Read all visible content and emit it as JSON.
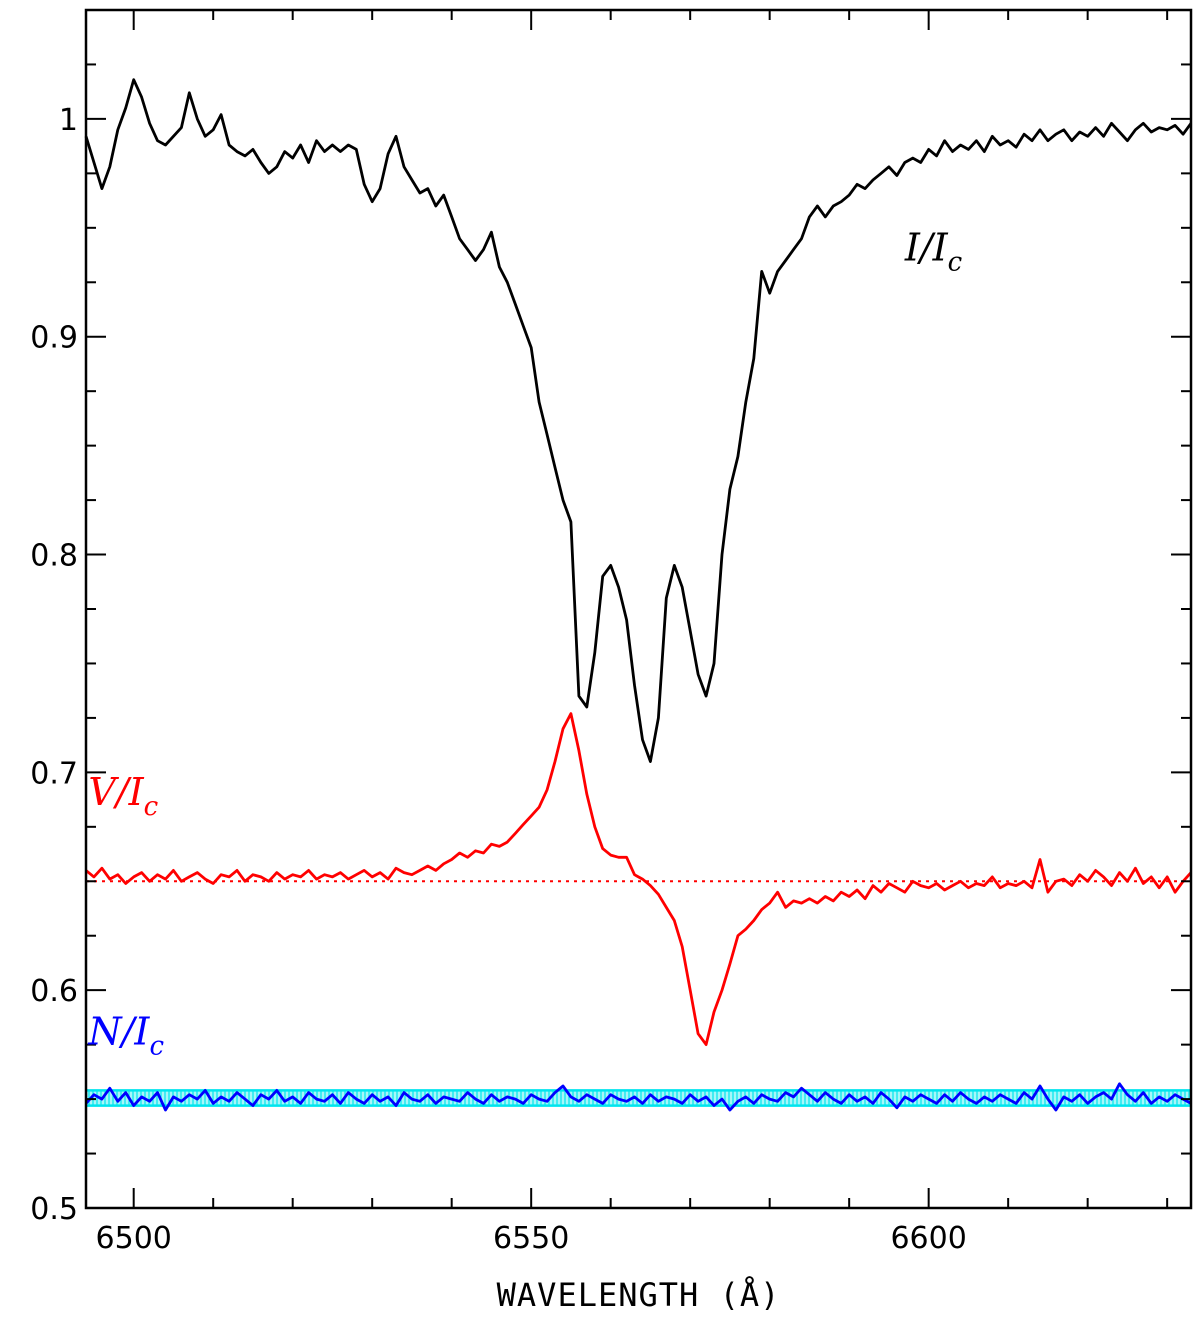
{
  "chart_data": {
    "type": "line",
    "title": "",
    "xlabel": "WAVELENGTH (Å)",
    "ylabel": "",
    "xlim": [
      6494,
      6633
    ],
    "ylim": [
      0.5,
      1.05
    ],
    "x_ticks": [
      6500,
      6550,
      6600
    ],
    "y_ticks": [
      0.5,
      0.6,
      0.7,
      0.8,
      0.9,
      1
    ],
    "x_tick_labels": [
      "6500",
      "6550",
      "6600"
    ],
    "y_tick_labels": [
      "0.5",
      "0.6",
      "0.7",
      "0.8",
      "0.9",
      "1"
    ],
    "x_minor_step": 10,
    "y_minor_step": 0.025,
    "grid": false,
    "annotations": [
      {
        "id": "I",
        "main": "I/I",
        "sub": "c",
        "x": 6597,
        "y": 0.935,
        "color": "#000000"
      },
      {
        "id": "V",
        "main": "V/I",
        "sub": "c",
        "x": 6494.3,
        "y": 0.685,
        "color": "#ff0000"
      },
      {
        "id": "N",
        "main": "N/I",
        "sub": "c",
        "x": 6494.3,
        "y": 0.575,
        "color": "#0000ff"
      }
    ],
    "series": [
      {
        "id": "I",
        "color": "#000000",
        "x": [
          6494,
          6496,
          6497,
          6498,
          6499,
          6500,
          6501,
          6502,
          6503,
          6504,
          6506,
          6507,
          6508,
          6509,
          6510,
          6511,
          6512,
          6513,
          6514,
          6515,
          6516,
          6517,
          6518,
          6519,
          6520,
          6521,
          6522,
          6523,
          6524,
          6525,
          6526,
          6527,
          6528,
          6529,
          6530,
          6531,
          6532,
          6533,
          6534,
          6535,
          6536,
          6537,
          6538,
          6539,
          6540,
          6541,
          6542,
          6543,
          6544,
          6545,
          6546,
          6547,
          6548,
          6549,
          6550,
          6551,
          6552,
          6553,
          6554,
          6555,
          6556,
          6557,
          6558,
          6559,
          6560,
          6561,
          6562,
          6563,
          6564,
          6565,
          6566,
          6567,
          6568,
          6569,
          6570,
          6571,
          6572,
          6573,
          6574,
          6575,
          6576,
          6577,
          6578,
          6579,
          6580,
          6581,
          6582,
          6583,
          6584,
          6585,
          6586,
          6587,
          6588,
          6589,
          6590,
          6591,
          6592,
          6593,
          6594,
          6595,
          6596,
          6597,
          6598,
          6599,
          6600,
          6601,
          6602,
          6603,
          6604,
          6605,
          6606,
          6607,
          6608,
          6609,
          6610,
          6611,
          6612,
          6613,
          6614,
          6615,
          6616,
          6617,
          6618,
          6619,
          6620,
          6621,
          6622,
          6623,
          6624,
          6625,
          6626,
          6627,
          6628,
          6629,
          6630,
          6631,
          6632,
          6633
        ],
        "y": [
          0.992,
          0.968,
          0.978,
          0.995,
          1.005,
          1.018,
          1.01,
          0.998,
          0.99,
          0.988,
          0.996,
          1.012,
          1.0,
          0.992,
          0.995,
          1.002,
          0.988,
          0.985,
          0.983,
          0.986,
          0.98,
          0.975,
          0.978,
          0.985,
          0.982,
          0.988,
          0.98,
          0.99,
          0.985,
          0.988,
          0.985,
          0.988,
          0.986,
          0.97,
          0.962,
          0.968,
          0.984,
          0.992,
          0.978,
          0.972,
          0.966,
          0.968,
          0.96,
          0.965,
          0.955,
          0.945,
          0.94,
          0.935,
          0.94,
          0.948,
          0.932,
          0.925,
          0.915,
          0.905,
          0.895,
          0.87,
          0.855,
          0.84,
          0.825,
          0.815,
          0.735,
          0.73,
          0.755,
          0.79,
          0.795,
          0.785,
          0.77,
          0.74,
          0.715,
          0.705,
          0.725,
          0.78,
          0.795,
          0.785,
          0.765,
          0.745,
          0.735,
          0.75,
          0.8,
          0.83,
          0.845,
          0.87,
          0.89,
          0.93,
          0.92,
          0.93,
          0.935,
          0.94,
          0.945,
          0.955,
          0.96,
          0.955,
          0.96,
          0.962,
          0.965,
          0.97,
          0.968,
          0.972,
          0.975,
          0.978,
          0.974,
          0.98,
          0.982,
          0.98,
          0.986,
          0.983,
          0.99,
          0.985,
          0.988,
          0.986,
          0.99,
          0.985,
          0.992,
          0.988,
          0.99,
          0.987,
          0.993,
          0.99,
          0.995,
          0.99,
          0.993,
          0.995,
          0.99,
          0.994,
          0.992,
          0.996,
          0.992,
          0.998,
          0.994,
          0.99,
          0.995,
          0.998,
          0.994,
          0.996,
          0.995,
          0.997,
          0.993,
          0.998
        ]
      },
      {
        "id": "V",
        "color": "#ff0000",
        "x": [
          6494,
          6495,
          6496,
          6497,
          6498,
          6499,
          6500,
          6501,
          6502,
          6503,
          6504,
          6505,
          6506,
          6507,
          6508,
          6509,
          6510,
          6511,
          6512,
          6513,
          6514,
          6515,
          6516,
          6517,
          6518,
          6519,
          6520,
          6521,
          6522,
          6523,
          6524,
          6525,
          6526,
          6527,
          6528,
          6529,
          6530,
          6531,
          6532,
          6533,
          6534,
          6535,
          6536,
          6537,
          6538,
          6539,
          6540,
          6541,
          6542,
          6543,
          6544,
          6545,
          6546,
          6547,
          6548,
          6549,
          6550,
          6551,
          6552,
          6553,
          6554,
          6555,
          6556,
          6557,
          6558,
          6559,
          6560,
          6561,
          6562,
          6563,
          6564,
          6565,
          6566,
          6567,
          6568,
          6569,
          6570,
          6571,
          6572,
          6573,
          6574,
          6575,
          6576,
          6577,
          6578,
          6579,
          6580,
          6581,
          6582,
          6583,
          6584,
          6585,
          6586,
          6587,
          6588,
          6589,
          6590,
          6591,
          6592,
          6593,
          6594,
          6595,
          6596,
          6597,
          6598,
          6599,
          6600,
          6601,
          6602,
          6603,
          6604,
          6605,
          6606,
          6607,
          6608,
          6609,
          6610,
          6611,
          6612,
          6613,
          6614,
          6615,
          6616,
          6617,
          6618,
          6619,
          6620,
          6621,
          6622,
          6623,
          6624,
          6625,
          6626,
          6627,
          6628,
          6629,
          6630,
          6631,
          6632,
          6633
        ],
        "y": [
          0.655,
          0.652,
          0.656,
          0.651,
          0.653,
          0.649,
          0.652,
          0.654,
          0.65,
          0.653,
          0.651,
          0.655,
          0.65,
          0.652,
          0.654,
          0.651,
          0.649,
          0.653,
          0.652,
          0.655,
          0.65,
          0.653,
          0.652,
          0.65,
          0.654,
          0.651,
          0.653,
          0.652,
          0.655,
          0.651,
          0.653,
          0.652,
          0.654,
          0.651,
          0.653,
          0.655,
          0.652,
          0.654,
          0.651,
          0.656,
          0.654,
          0.653,
          0.655,
          0.657,
          0.655,
          0.658,
          0.66,
          0.663,
          0.661,
          0.664,
          0.663,
          0.667,
          0.666,
          0.668,
          0.672,
          0.676,
          0.68,
          0.684,
          0.692,
          0.705,
          0.72,
          0.727,
          0.71,
          0.69,
          0.675,
          0.665,
          0.662,
          0.661,
          0.661,
          0.653,
          0.651,
          0.648,
          0.644,
          0.638,
          0.632,
          0.62,
          0.6,
          0.58,
          0.575,
          0.59,
          0.6,
          0.612,
          0.625,
          0.628,
          0.632,
          0.637,
          0.64,
          0.645,
          0.638,
          0.641,
          0.64,
          0.642,
          0.64,
          0.643,
          0.641,
          0.645,
          0.643,
          0.646,
          0.642,
          0.648,
          0.645,
          0.649,
          0.647,
          0.645,
          0.65,
          0.648,
          0.647,
          0.649,
          0.646,
          0.648,
          0.65,
          0.647,
          0.649,
          0.648,
          0.652,
          0.647,
          0.649,
          0.648,
          0.65,
          0.647,
          0.66,
          0.645,
          0.65,
          0.651,
          0.648,
          0.653,
          0.65,
          0.655,
          0.652,
          0.648,
          0.654,
          0.65,
          0.656,
          0.649,
          0.652,
          0.647,
          0.652,
          0.645,
          0.65,
          0.654
        ]
      },
      {
        "id": "N",
        "color": "#0000ff",
        "x": [
          6494,
          6495,
          6496,
          6497,
          6498,
          6499,
          6500,
          6501,
          6502,
          6503,
          6504,
          6505,
          6506,
          6507,
          6508,
          6509,
          6510,
          6511,
          6512,
          6513,
          6514,
          6515,
          6516,
          6517,
          6518,
          6519,
          6520,
          6521,
          6522,
          6523,
          6524,
          6525,
          6526,
          6527,
          6528,
          6529,
          6530,
          6531,
          6532,
          6533,
          6534,
          6535,
          6536,
          6537,
          6538,
          6539,
          6540,
          6541,
          6542,
          6543,
          6544,
          6545,
          6546,
          6547,
          6548,
          6549,
          6550,
          6551,
          6552,
          6553,
          6554,
          6555,
          6556,
          6557,
          6558,
          6559,
          6560,
          6561,
          6562,
          6563,
          6564,
          6565,
          6566,
          6567,
          6568,
          6569,
          6570,
          6571,
          6572,
          6573,
          6574,
          6575,
          6576,
          6577,
          6578,
          6579,
          6580,
          6581,
          6582,
          6583,
          6584,
          6585,
          6586,
          6587,
          6588,
          6589,
          6590,
          6591,
          6592,
          6593,
          6594,
          6595,
          6596,
          6597,
          6598,
          6599,
          6600,
          6601,
          6602,
          6603,
          6604,
          6605,
          6606,
          6607,
          6608,
          6609,
          6610,
          6611,
          6612,
          6613,
          6614,
          6615,
          6616,
          6617,
          6618,
          6619,
          6620,
          6621,
          6622,
          6623,
          6624,
          6625,
          6626,
          6627,
          6628,
          6629,
          6630,
          6631,
          6632,
          6633
        ],
        "y": [
          0.548,
          0.552,
          0.55,
          0.555,
          0.549,
          0.553,
          0.547,
          0.551,
          0.549,
          0.553,
          0.545,
          0.551,
          0.549,
          0.552,
          0.55,
          0.554,
          0.548,
          0.551,
          0.549,
          0.553,
          0.55,
          0.547,
          0.552,
          0.55,
          0.554,
          0.549,
          0.551,
          0.548,
          0.553,
          0.55,
          0.549,
          0.552,
          0.548,
          0.553,
          0.55,
          0.548,
          0.552,
          0.549,
          0.551,
          0.547,
          0.553,
          0.55,
          0.549,
          0.552,
          0.548,
          0.551,
          0.55,
          0.549,
          0.553,
          0.55,
          0.548,
          0.552,
          0.549,
          0.551,
          0.55,
          0.548,
          0.552,
          0.55,
          0.549,
          0.553,
          0.556,
          0.551,
          0.549,
          0.552,
          0.55,
          0.548,
          0.552,
          0.55,
          0.549,
          0.551,
          0.548,
          0.552,
          0.549,
          0.551,
          0.55,
          0.548,
          0.552,
          0.549,
          0.551,
          0.547,
          0.55,
          0.545,
          0.549,
          0.551,
          0.548,
          0.552,
          0.55,
          0.549,
          0.553,
          0.551,
          0.555,
          0.552,
          0.549,
          0.553,
          0.55,
          0.548,
          0.552,
          0.549,
          0.551,
          0.548,
          0.553,
          0.55,
          0.546,
          0.551,
          0.549,
          0.552,
          0.55,
          0.548,
          0.552,
          0.549,
          0.553,
          0.55,
          0.548,
          0.551,
          0.549,
          0.552,
          0.55,
          0.548,
          0.553,
          0.55,
          0.556,
          0.55,
          0.545,
          0.551,
          0.549,
          0.552,
          0.548,
          0.551,
          0.553,
          0.55,
          0.557,
          0.552,
          0.549,
          0.553,
          0.548,
          0.551,
          0.549,
          0.552,
          0.55,
          0.548
        ]
      }
    ],
    "reference_lines": [
      {
        "id": "V-zero",
        "y": 0.65,
        "color": "#ff0000",
        "style": "dotted"
      }
    ],
    "bands": [
      {
        "id": "N-error-band",
        "y_min": 0.547,
        "y_max": 0.554,
        "color": "#00e5ee"
      }
    ]
  }
}
